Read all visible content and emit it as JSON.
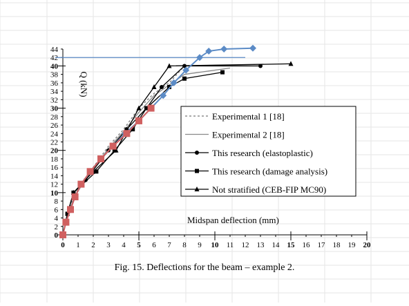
{
  "chart_data": {
    "type": "line",
    "title": "",
    "xlabel": "Midspan deflection (mm)",
    "ylabel": "Q (kN)",
    "xlim": [
      0,
      20
    ],
    "ylim": [
      0,
      44
    ],
    "x_ticks_major": [
      0,
      5,
      10,
      15,
      20
    ],
    "x_ticks_minor": [
      1,
      2,
      3,
      4,
      6,
      7,
      8,
      9,
      11,
      12,
      13,
      14,
      16,
      17,
      18,
      19
    ],
    "y_ticks_major": [
      0,
      10,
      20,
      30,
      40
    ],
    "y_ticks_minor": [
      2,
      4,
      6,
      8,
      12,
      14,
      16,
      18,
      22,
      24,
      26,
      28,
      32,
      34,
      36,
      38,
      42,
      44
    ],
    "legend_position": "right",
    "caption": "Fig. 15.  Deflections for the beam – example 2.",
    "series": [
      {
        "name": "Experimental 1 [18]",
        "style": "dashed",
        "color": "#777777",
        "marker": "none",
        "x": [
          0,
          0.3,
          0.7,
          1.2,
          2.0,
          3.0,
          4.0,
          5.0,
          6.0,
          7.0,
          7.5,
          8.0
        ],
        "y": [
          0,
          5,
          9,
          12,
          16,
          21,
          25,
          30,
          33.5,
          36,
          38,
          40
        ]
      },
      {
        "name": "Experimental 2 [18]",
        "style": "solid",
        "color": "#888888",
        "marker": "none",
        "x": [
          0,
          0.3,
          0.7,
          1.2,
          2.0,
          3.0,
          4.0,
          5.0,
          6.0,
          7.0,
          8.0,
          11.0
        ],
        "y": [
          0,
          4.5,
          8.5,
          11.5,
          15.5,
          20.5,
          24.5,
          29,
          33,
          35.5,
          38,
          39.5
        ]
      },
      {
        "name": "This research (elastoplastic)",
        "style": "solid",
        "color": "#000000",
        "marker": "circle",
        "x": [
          0,
          0.3,
          0.7,
          1.5,
          3.0,
          4.2,
          5.5,
          6.5,
          8.0,
          13.0
        ],
        "y": [
          0,
          5,
          10,
          13,
          20,
          25,
          30,
          35,
          40,
          40
        ]
      },
      {
        "name": "This research (damage analysis)",
        "style": "solid",
        "color": "#000000",
        "marker": "square",
        "x": [
          0,
          0.3,
          0.7,
          2.2,
          3.4,
          4.6,
          5.5,
          7.0,
          8.0,
          10.5
        ],
        "y": [
          0,
          5,
          10,
          15,
          20,
          25,
          30,
          35,
          37,
          38.5
        ]
      },
      {
        "name": "Not stratified (CEB-FIP MC90)",
        "style": "solid",
        "color": "#000000",
        "marker": "triangle",
        "x": [
          0,
          0.3,
          0.7,
          2.0,
          3.5,
          5.0,
          6.0,
          7.0,
          15.0
        ],
        "y": [
          0,
          5,
          10,
          15,
          20,
          30,
          35,
          40,
          40.5
        ]
      },
      {
        "name": "",
        "style": "solid",
        "color": "#5b8bc6",
        "marker": "diamond",
        "in_legend": false,
        "x": [
          0,
          0.2,
          0.5,
          0.8,
          1.2,
          1.8,
          2.5,
          3.3,
          4.1,
          5.0,
          5.8,
          6.6,
          7.3,
          8.1,
          9.0,
          9.6,
          10.6,
          12.5
        ],
        "y": [
          0,
          3,
          6,
          9,
          12,
          15,
          18,
          21,
          24,
          27,
          30,
          33,
          36,
          39,
          42,
          43.5,
          44,
          44.2
        ]
      },
      {
        "name": "",
        "style": "solid",
        "color": "#d06060",
        "marker": "square",
        "in_legend": false,
        "x": [
          0,
          0.2,
          0.5,
          0.8,
          1.2,
          1.8,
          2.5,
          3.3,
          4.2,
          5.0,
          5.8
        ],
        "y": [
          0,
          3,
          6,
          9,
          12,
          15,
          18,
          21,
          24,
          27,
          30
        ]
      }
    ],
    "reference_line": {
      "y": 42,
      "x_range": [
        -0.5,
        12
      ]
    }
  }
}
